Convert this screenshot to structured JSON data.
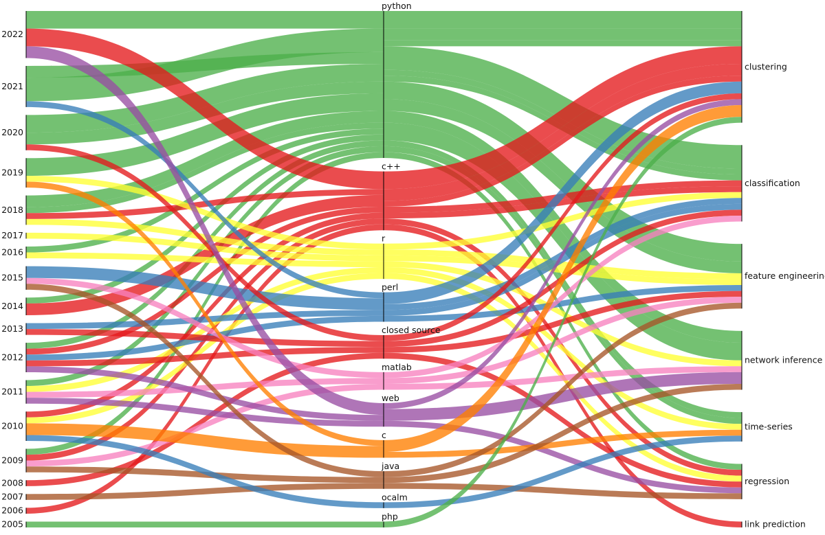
{
  "chart_data": {
    "type": "alluvial",
    "title": "",
    "columns": [
      {
        "key": "year",
        "label": ""
      },
      {
        "key": "language",
        "label": ""
      },
      {
        "key": "task",
        "label": ""
      }
    ],
    "years": [
      "2022",
      "2021",
      "2020",
      "2019",
      "2018",
      "2017",
      "2016",
      "2015",
      "2014",
      "2013",
      "2012",
      "2011",
      "2010",
      "2009",
      "2008",
      "2007",
      "2006",
      "2005"
    ],
    "languages": [
      "python",
      "c++",
      "r",
      "perl",
      "closed source",
      "matlab",
      "web",
      "c",
      "java",
      "ocalm",
      "php"
    ],
    "tasks": [
      "clustering",
      "classification",
      "feature engineering",
      "network inference",
      "time-series",
      "regression",
      "link prediction"
    ],
    "colors": {
      "python": "#4daf4a",
      "c++": "#e41a1c",
      "r": "#ffff33",
      "perl": "#377eb8",
      "closed source": "#e41a1c",
      "matlab": "#f781bf",
      "web": "#984ea3",
      "c": "#ff7f00",
      "java": "#a65628",
      "ocalm": "#377eb8",
      "php": "#4daf4a"
    },
    "flows": [
      {
        "year": "2022",
        "language": "python",
        "task": "clustering",
        "value": 3
      },
      {
        "year": "2021",
        "language": "python",
        "task": "classification",
        "value": 4
      },
      {
        "year": "2021",
        "language": "python",
        "task": "clustering",
        "value": 2
      },
      {
        "year": "2020",
        "language": "python",
        "task": "feature engineering",
        "value": 3
      },
      {
        "year": "2020",
        "language": "python",
        "task": "network inference",
        "value": 2
      },
      {
        "year": "2019",
        "language": "python",
        "task": "network inference",
        "value": 3
      },
      {
        "year": "2018",
        "language": "python",
        "task": "feature engineering",
        "value": 2
      },
      {
        "year": "2018",
        "language": "python",
        "task": "time-series",
        "value": 1
      },
      {
        "year": "2016",
        "language": "python",
        "task": "regression",
        "value": 1
      },
      {
        "year": "2014",
        "language": "python",
        "task": "classification",
        "value": 1
      },
      {
        "year": "2012",
        "language": "python",
        "task": "time-series",
        "value": 1
      },
      {
        "year": "2011",
        "language": "python",
        "task": "clustering",
        "value": 1
      },
      {
        "year": "2009",
        "language": "python",
        "task": "classification",
        "value": 1
      },
      {
        "year": "2022",
        "language": "c++",
        "task": "clustering",
        "value": 3
      },
      {
        "year": "2018",
        "language": "c++",
        "task": "classification",
        "value": 1
      },
      {
        "year": "2014",
        "language": "c++",
        "task": "clustering",
        "value": 2
      },
      {
        "year": "2012",
        "language": "c++",
        "task": "regression",
        "value": 1
      },
      {
        "year": "2010",
        "language": "c++",
        "task": "classification",
        "value": 1
      },
      {
        "year": "2009",
        "language": "c++",
        "task": "clustering",
        "value": 1
      },
      {
        "year": "2006",
        "language": "c++",
        "task": "link prediction",
        "value": 1
      },
      {
        "year": "2019",
        "language": "r",
        "task": "feature engineering",
        "value": 1
      },
      {
        "year": "2018",
        "language": "r",
        "task": "time-series",
        "value": 1
      },
      {
        "year": "2017",
        "language": "r",
        "task": "network inference",
        "value": 1
      },
      {
        "year": "2016",
        "language": "r",
        "task": "classification",
        "value": 1
      },
      {
        "year": "2011",
        "language": "r",
        "task": "regression",
        "value": 1
      },
      {
        "year": "2010",
        "language": "r",
        "task": "feature engineering",
        "value": 1
      },
      {
        "year": "2021",
        "language": "perl",
        "task": "classification",
        "value": 1
      },
      {
        "year": "2015",
        "language": "perl",
        "task": "clustering",
        "value": 2
      },
      {
        "year": "2013",
        "language": "perl",
        "task": "feature engineering",
        "value": 1
      },
      {
        "year": "2012",
        "language": "perl",
        "task": "classification",
        "value": 1
      },
      {
        "year": "2020",
        "language": "closed source",
        "task": "regression",
        "value": 1
      },
      {
        "year": "2013",
        "language": "closed source",
        "task": "classification",
        "value": 1
      },
      {
        "year": "2012",
        "language": "closed source",
        "task": "feature engineering",
        "value": 1
      },
      {
        "year": "2008",
        "language": "closed source",
        "task": "clustering",
        "value": 1
      },
      {
        "year": "2015",
        "language": "matlab",
        "task": "network inference",
        "value": 1
      },
      {
        "year": "2011",
        "language": "matlab",
        "task": "feature engineering",
        "value": 1
      },
      {
        "year": "2009",
        "language": "matlab",
        "task": "classification",
        "value": 1
      },
      {
        "year": "2022",
        "language": "web",
        "task": "network inference",
        "value": 2
      },
      {
        "year": "2012",
        "language": "web",
        "task": "regression",
        "value": 1
      },
      {
        "year": "2011",
        "language": "web",
        "task": "clustering",
        "value": 1
      },
      {
        "year": "2019",
        "language": "c",
        "task": "time-series",
        "value": 1
      },
      {
        "year": "2010",
        "language": "c",
        "task": "clustering",
        "value": 2
      },
      {
        "year": "2015",
        "language": "java",
        "task": "regression",
        "value": 1
      },
      {
        "year": "2009",
        "language": "java",
        "task": "network inference",
        "value": 1
      },
      {
        "year": "2007",
        "language": "java",
        "task": "feature engineering",
        "value": 1
      },
      {
        "year": "2010",
        "language": "ocalm",
        "task": "time-series",
        "value": 1
      },
      {
        "year": "2005",
        "language": "php",
        "task": "clustering",
        "value": 1
      }
    ]
  }
}
